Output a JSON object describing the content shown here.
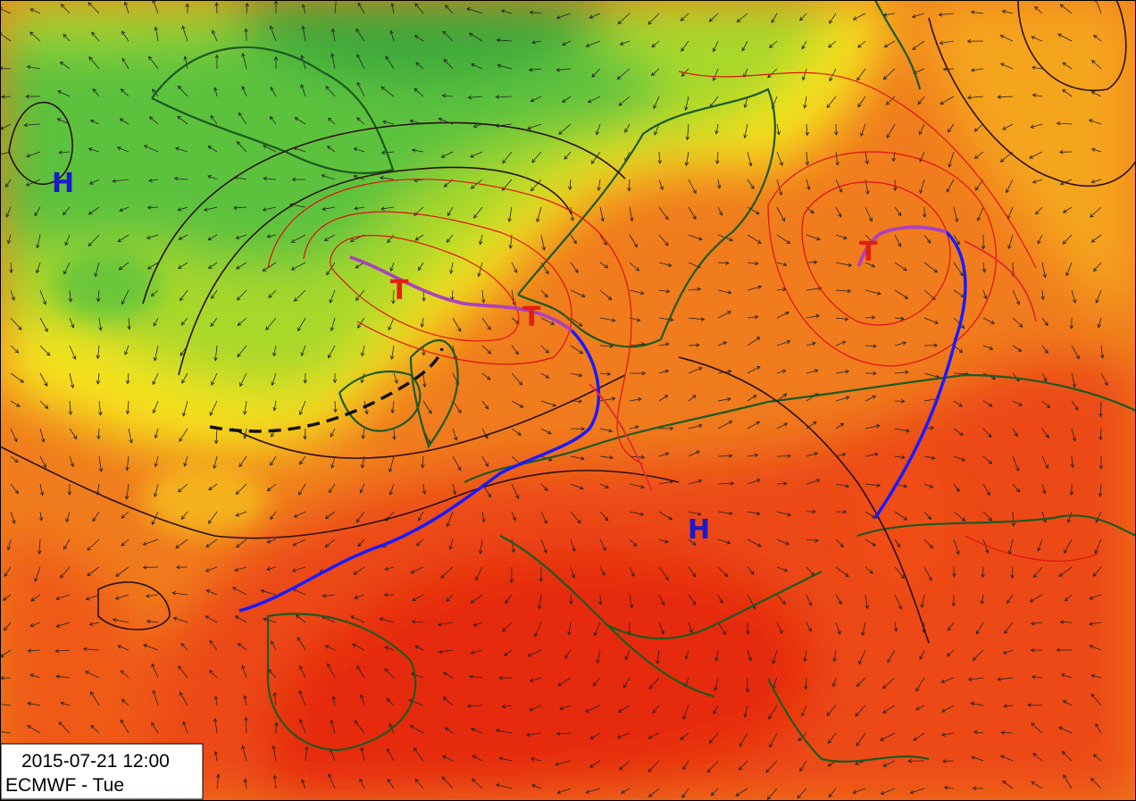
{
  "pressure_centers": [
    {
      "label": "H"
    },
    {
      "label": "H"
    },
    {
      "label": "T"
    },
    {
      "label": "T"
    },
    {
      "label": "T"
    }
  ],
  "info_box": {
    "timestamp": "2015-07-21 12:00",
    "model_label": "ECMWF - Tue"
  }
}
